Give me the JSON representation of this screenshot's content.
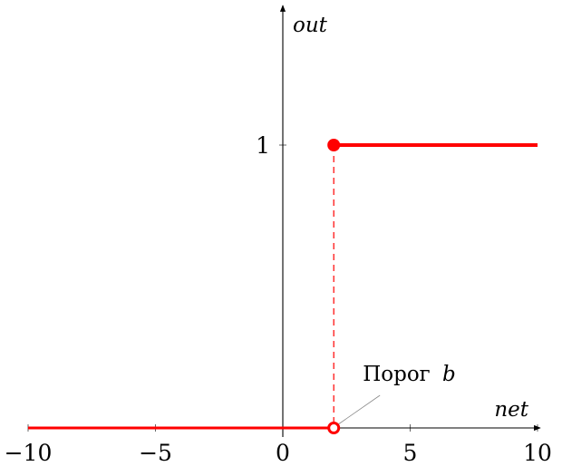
{
  "chart_data": {
    "type": "line",
    "title": "",
    "xlabel": "net",
    "ylabel": "out",
    "xlim": [
      -10,
      10
    ],
    "ylim": [
      0,
      1
    ],
    "x_ticks": [
      -10,
      -5,
      0,
      5,
      10
    ],
    "x_tick_labels": [
      "−10",
      "−5",
      "0",
      "5",
      "10"
    ],
    "y_ticks": [
      1
    ],
    "y_tick_labels": [
      "1"
    ],
    "grid": false,
    "threshold": 2,
    "series": [
      {
        "x": [
          -10,
          2
        ],
        "y": [
          0,
          0
        ],
        "color": "#ff0000"
      },
      {
        "x": [
          2,
          10
        ],
        "y": [
          1,
          1
        ],
        "color": "#ff0000"
      }
    ],
    "open_point": {
      "x": 2,
      "y": 0
    },
    "closed_point": {
      "x": 2,
      "y": 1
    },
    "annotation": {
      "text": "Порог",
      "var": "b",
      "x": 2,
      "y": 0
    }
  }
}
